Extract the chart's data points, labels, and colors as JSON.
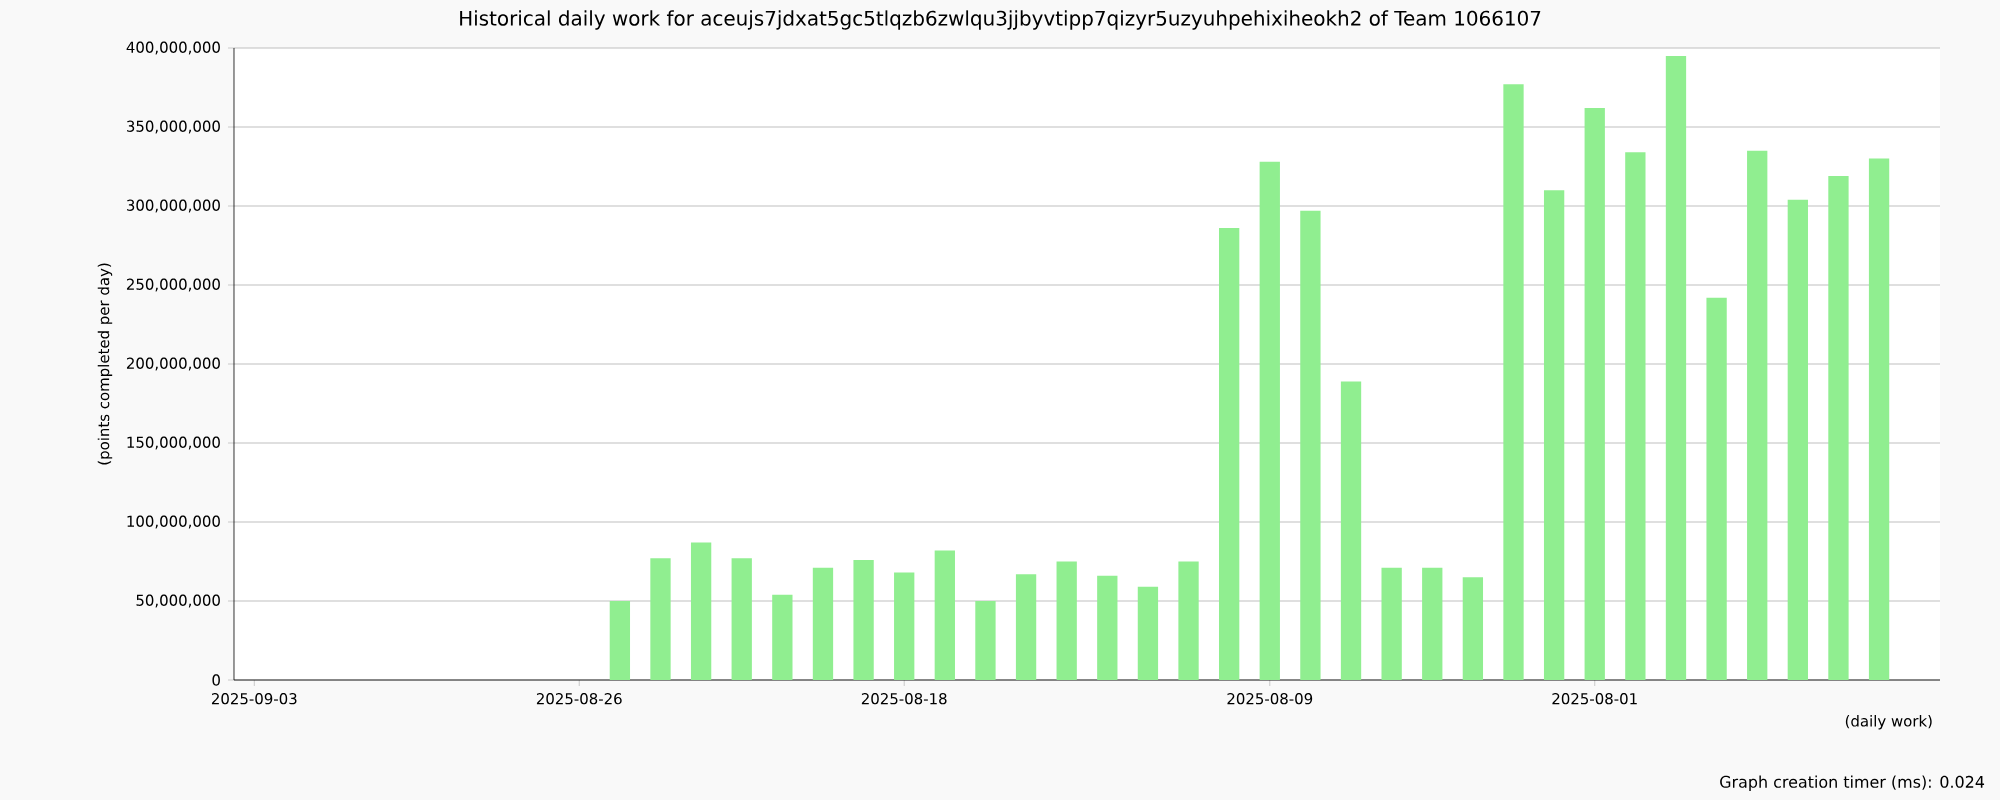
{
  "chart_data": {
    "type": "bar",
    "title": "Historical daily work for aceujs7jdxat5gc5tlqzb6zwlqu3jjbyvtipp7qizyr5uzyuhpehixiheokh2 of Team 1066107",
    "xlabel": "(daily work)",
    "ylabel": "(points completed per day)",
    "annotations": [
      "Graph creation timer (ms): 0.024"
    ],
    "x": [
      "2025-08-25",
      "2025-08-24",
      "2025-08-23",
      "2025-08-22",
      "2025-08-21",
      "2025-08-20",
      "2025-08-19",
      "2025-08-18",
      "2025-08-17",
      "2025-08-16",
      "2025-08-15",
      "2025-08-14",
      "2025-08-13",
      "2025-08-12",
      "2025-08-11",
      "2025-08-10",
      "2025-08-09",
      "2025-08-08",
      "2025-08-07",
      "2025-08-06",
      "2025-08-05",
      "2025-08-04",
      "2025-08-03",
      "2025-08-02",
      "2025-08-01",
      "2025-07-31",
      "2025-07-30",
      "2025-07-29",
      "2025-07-28",
      "2025-07-27",
      "2025-07-26",
      "2025-07-25"
    ],
    "values": [
      50000000,
      77000000,
      87000000,
      77000000,
      54000000,
      71000000,
      76000000,
      68000000,
      82000000,
      50000000,
      67000000,
      75000000,
      66000000,
      59000000,
      75000000,
      286000000,
      328000000,
      297000000,
      189000000,
      71000000,
      71000000,
      65000000,
      377000000,
      310000000,
      362000000,
      334000000,
      395000000,
      242000000,
      335000000,
      304000000,
      319000000,
      330000000
    ],
    "color": "#90ee90",
    "xlim": [
      "2025-09-03T12:00",
      "2025-07-23T12:00"
    ],
    "xticks": [
      {
        "value": "2025-09-03",
        "label": "2025-09-03"
      },
      {
        "value": "2025-08-26",
        "label": "2025-08-26"
      },
      {
        "value": "2025-08-18",
        "label": "2025-08-18"
      },
      {
        "value": "2025-08-09",
        "label": "2025-08-09"
      },
      {
        "value": "2025-08-01",
        "label": "2025-08-01"
      }
    ],
    "ylim": [
      0,
      400000000
    ],
    "yticks": [
      0,
      {
        "value": 50000000,
        "label": "50,000,000"
      },
      {
        "value": 100000000,
        "label": "100,000,000"
      },
      {
        "value": 150000000,
        "label": "150,000,000"
      },
      {
        "value": 200000000,
        "label": "200,000,000"
      },
      {
        "value": 250000000,
        "label": "250,000,000"
      },
      {
        "value": 300000000,
        "label": "300,000,000"
      },
      {
        "value": 350000000,
        "label": "350,000,000"
      },
      {
        "value": 400000000,
        "label": "400,000,000"
      }
    ],
    "grid": "y"
  }
}
